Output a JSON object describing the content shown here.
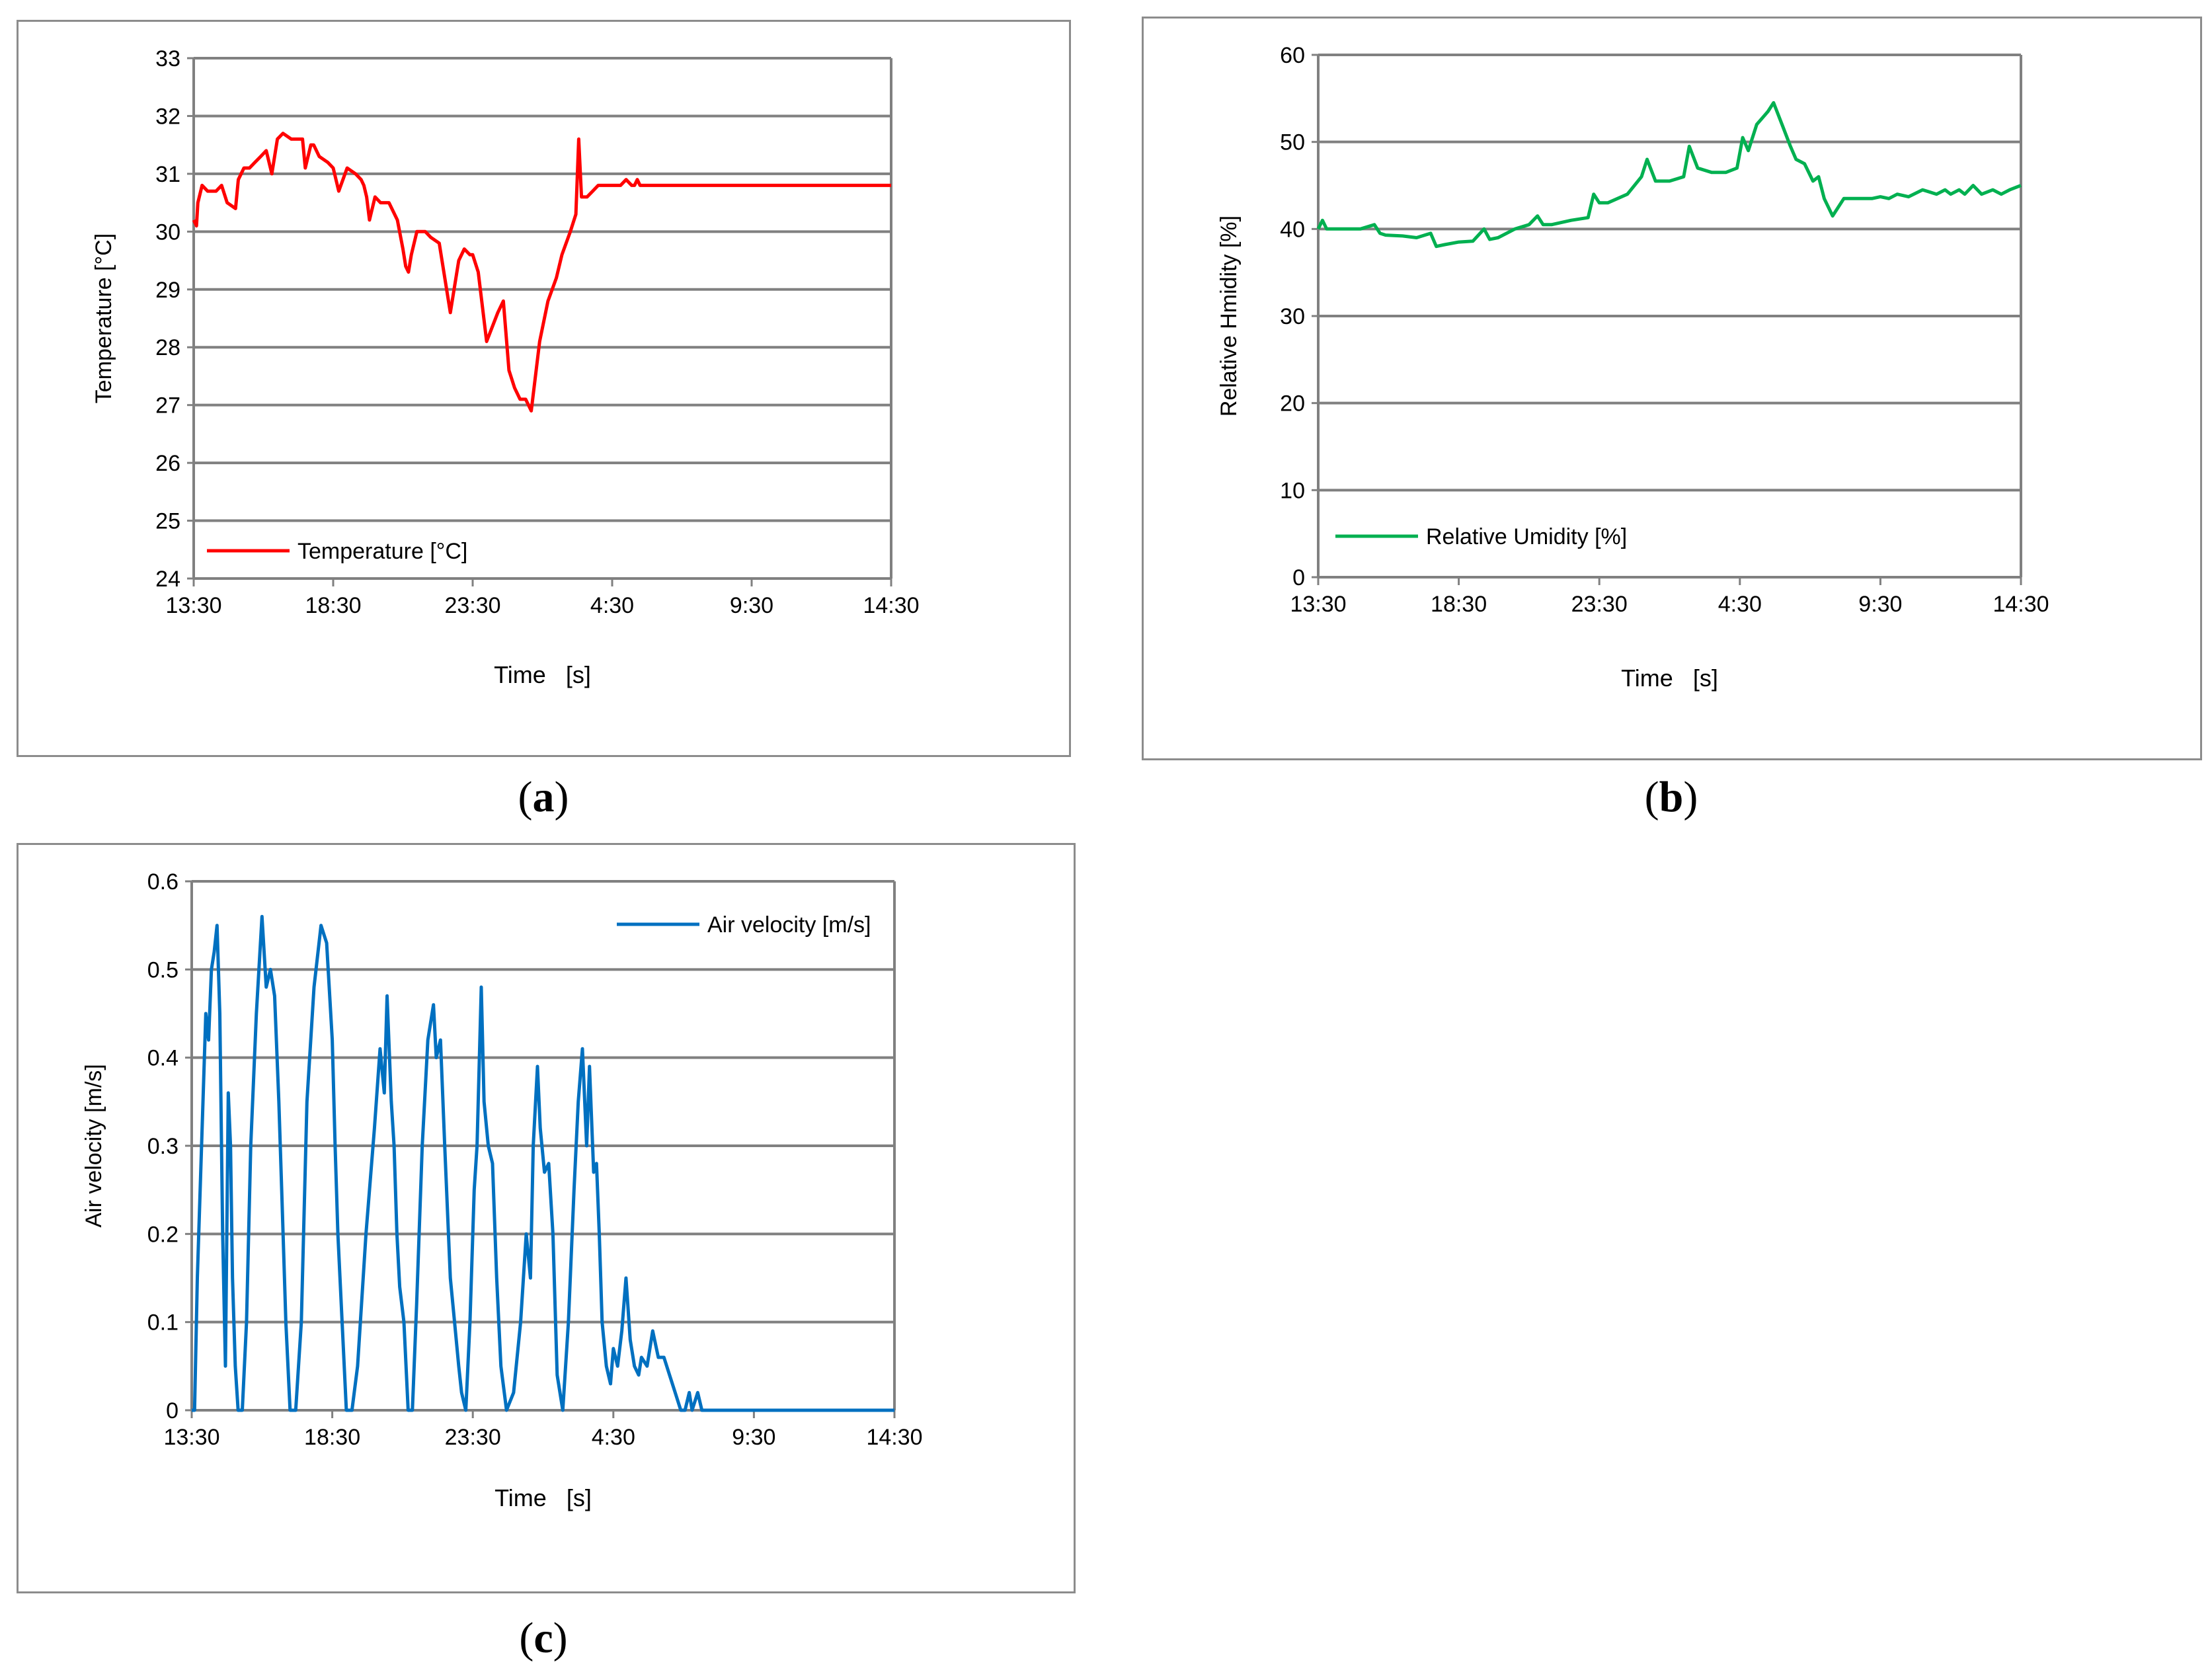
{
  "captions": {
    "a": "a",
    "b": "b",
    "c": "c"
  },
  "colors": {
    "temperature": "#ff0000",
    "humidity": "#00b050",
    "air_velocity": "#0070c0",
    "grid": "#808080",
    "border": "#8c8c8c"
  },
  "chart_data": [
    {
      "id": "a",
      "type": "line",
      "title": "",
      "xlabel": "Time   [s]",
      "ylabel": "Temperature [°C]",
      "ylim": [
        24,
        33
      ],
      "yticks": [
        24,
        25,
        26,
        27,
        28,
        29,
        30,
        31,
        32,
        33
      ],
      "xlim": [
        0,
        25
      ],
      "xtick_positions": [
        0,
        5,
        10,
        15,
        20,
        25
      ],
      "xtick_labels": [
        "13:30",
        "18:30",
        "23:30",
        "4:30",
        "9:30",
        "14:30"
      ],
      "grid": true,
      "legend": "bottom-left",
      "series": [
        {
          "name": "Temperature [°C]",
          "color": "#ff0000",
          "x": [
            0,
            0.1,
            0.15,
            0.3,
            0.5,
            0.8,
            1,
            1.2,
            1.5,
            1.6,
            1.8,
            2,
            2.2,
            2.4,
            2.6,
            2.8,
            3,
            3.2,
            3.5,
            3.8,
            3.9,
            4,
            4.2,
            4.3,
            4.4,
            4.5,
            4.8,
            5,
            5.2,
            5.5,
            5.8,
            6,
            6.1,
            6.2,
            6.3,
            6.5,
            6.7,
            7,
            7.3,
            7.5,
            7.6,
            7.7,
            7.8,
            8,
            8.3,
            8.5,
            8.8,
            9.2,
            9.5,
            9.7,
            9.9,
            10,
            10.2,
            10.5,
            10.9,
            11.1,
            11.3,
            11.5,
            11.7,
            11.9,
            12.1,
            12.4,
            12.7,
            13,
            13.2,
            13.5,
            13.7,
            13.8,
            13.9,
            14.1,
            14.3,
            14.5,
            14.7,
            15,
            15.3,
            15.5,
            15.7,
            15.8,
            15.9,
            16,
            16.1,
            16.2,
            16.3,
            16.4,
            16.6,
            16.8,
            16.9,
            17,
            17.1,
            17.2,
            17.3,
            17.5,
            17.7,
            18,
            18.2,
            18.6,
            19,
            19.3,
            19.5,
            19.7,
            19.9,
            20,
            20.2,
            20.4,
            20.7,
            21,
            21.5,
            22,
            22.5,
            23,
            23.5,
            24,
            24.5,
            25
          ],
          "values": [
            30.2,
            30.1,
            30.5,
            30.8,
            30.7,
            30.7,
            30.8,
            30.5,
            30.4,
            30.9,
            31.1,
            31.1,
            31.2,
            31.3,
            31.4,
            31.0,
            31.6,
            31.7,
            31.6,
            31.6,
            31.6,
            31.1,
            31.5,
            31.5,
            31.4,
            31.3,
            31.2,
            31.1,
            30.7,
            31.1,
            31.0,
            30.9,
            30.8,
            30.6,
            30.2,
            30.6,
            30.5,
            30.5,
            30.2,
            29.7,
            29.4,
            29.3,
            29.6,
            30.0,
            30.0,
            29.9,
            29.8,
            28.6,
            29.5,
            29.7,
            29.6,
            29.6,
            29.3,
            28.1,
            28.6,
            28.8,
            27.6,
            27.3,
            27.1,
            27.1,
            26.9,
            28.1,
            28.8,
            29.2,
            29.6,
            30.0,
            30.3,
            31.6,
            30.6,
            30.6,
            30.7,
            30.8,
            30.8,
            30.8,
            30.8,
            30.9,
            30.8,
            30.8,
            30.9,
            30.8,
            30.8,
            30.8,
            30.8,
            30.8,
            30.8,
            30.8,
            30.8,
            30.8,
            30.8,
            30.8,
            30.8,
            30.8,
            30.8,
            30.8,
            30.8,
            30.8,
            30.8,
            30.8,
            30.8,
            30.8,
            30.8,
            30.8,
            30.8,
            30.8,
            30.8,
            30.8,
            30.8,
            30.8,
            30.8,
            30.8,
            30.8,
            30.8,
            30.8,
            30.8
          ]
        }
      ]
    },
    {
      "id": "b",
      "type": "line",
      "title": "",
      "xlabel": "Time   [s]",
      "ylabel": "Relative Hmidity [%]",
      "ylim": [
        0,
        60
      ],
      "yticks": [
        0,
        10,
        20,
        30,
        40,
        50,
        60
      ],
      "xlim": [
        0,
        25
      ],
      "xtick_positions": [
        0,
        5,
        10,
        15,
        20,
        25
      ],
      "xtick_labels": [
        "13:30",
        "18:30",
        "23:30",
        "4:30",
        "9:30",
        "14:30"
      ],
      "grid": true,
      "legend": "bottom-left",
      "series": [
        {
          "name": "Relative Umidity [%]",
          "color": "#00b050",
          "x": [
            0,
            0.15,
            0.3,
            0.8,
            1.5,
            2,
            2.2,
            2.4,
            3,
            3.5,
            4,
            4.2,
            4.5,
            5,
            5.5,
            5.9,
            6.1,
            6.4,
            7,
            7.5,
            7.8,
            8,
            8.3,
            9,
            9.6,
            9.8,
            10,
            10.3,
            11,
            11.5,
            11.7,
            12,
            12.5,
            13,
            13.2,
            13.5,
            14,
            14.5,
            14.9,
            15.1,
            15.3,
            15.6,
            16,
            16.2,
            16.5,
            16.8,
            17,
            17.3,
            17.6,
            17.8,
            18,
            18.3,
            18.7,
            19,
            19.4,
            19.7,
            20,
            20.3,
            20.6,
            21,
            21.5,
            22,
            22.3,
            22.5,
            22.8,
            23,
            23.3,
            23.6,
            24,
            24.3,
            24.6,
            25
          ],
          "values": [
            40,
            41,
            40,
            40,
            40,
            40.5,
            39.5,
            39.3,
            39.2,
            39,
            39.5,
            38,
            38.2,
            38.5,
            38.6,
            40,
            38.8,
            39,
            40,
            40.5,
            41.5,
            40.5,
            40.5,
            41,
            41.3,
            44,
            43,
            43,
            44,
            46,
            48,
            45.5,
            45.5,
            46,
            49.5,
            47,
            46.5,
            46.5,
            47,
            50.5,
            49,
            52,
            53.5,
            54.5,
            52,
            49.5,
            48,
            47.5,
            45.5,
            46,
            43.5,
            41.5,
            43.5,
            43.5,
            43.5,
            43.5,
            43.7,
            43.5,
            44,
            43.7,
            44.5,
            44,
            44.5,
            44,
            44.5,
            44,
            45,
            44,
            44.5,
            44,
            44.5,
            45
          ]
        }
      ]
    },
    {
      "id": "c",
      "type": "line",
      "title": "",
      "xlabel": "Time   [s]",
      "ylabel": "Air velocity [m/s]",
      "ylim": [
        0,
        0.6
      ],
      "yticks": [
        0,
        0.1,
        0.2,
        0.3,
        0.4,
        0.5,
        0.6
      ],
      "xlim": [
        0,
        25
      ],
      "xtick_positions": [
        0,
        5,
        10,
        15,
        20,
        25
      ],
      "xtick_labels": [
        "13:30",
        "18:30",
        "23:30",
        "4:30",
        "9:30",
        "14:30"
      ],
      "grid": true,
      "legend": "top-right",
      "series": [
        {
          "name": "Air velocity [m/s]",
          "color": "#0070c0",
          "x": [
            0,
            0.1,
            0.2,
            0.35,
            0.5,
            0.6,
            0.7,
            0.8,
            0.9,
            1.0,
            1.1,
            1.2,
            1.3,
            1.38,
            1.45,
            1.55,
            1.65,
            1.8,
            1.95,
            2.1,
            2.3,
            2.5,
            2.65,
            2.8,
            2.95,
            3.1,
            3.2,
            3.35,
            3.5,
            3.7,
            3.9,
            4.1,
            4.35,
            4.6,
            4.8,
            5.0,
            5.1,
            5.2,
            5.35,
            5.5,
            5.7,
            5.9,
            6.2,
            6.5,
            6.7,
            6.85,
            6.95,
            7.1,
            7.2,
            7.3,
            7.4,
            7.55,
            7.7,
            7.85,
            8.0,
            8.2,
            8.4,
            8.6,
            8.7,
            8.85,
            9.0,
            9.2,
            9.35,
            9.5,
            9.6,
            9.75,
            9.9,
            10.05,
            10.15,
            10.3,
            10.4,
            10.55,
            10.7,
            10.85,
            11.0,
            11.2,
            11.45,
            11.7,
            11.9,
            12.05,
            12.15,
            12.3,
            12.4,
            12.55,
            12.7,
            12.85,
            13.0,
            13.2,
            13.4,
            13.6,
            13.75,
            13.9,
            14.05,
            14.15,
            14.3,
            14.4,
            14.5,
            14.6,
            14.75,
            14.9,
            15.0,
            15.15,
            15.3,
            15.45,
            15.6,
            15.75,
            15.9,
            16.0,
            16.2,
            16.4,
            16.6,
            16.8,
            17.0,
            17.2,
            17.4,
            17.55,
            17.7,
            17.8,
            17.9,
            18.0,
            18.15,
            18.3,
            19.0,
            20.0,
            21.0,
            22.0,
            23.0,
            24.0,
            25.0
          ],
          "values": [
            0,
            0,
            0.15,
            0.3,
            0.45,
            0.42,
            0.5,
            0.52,
            0.55,
            0.45,
            0.2,
            0.05,
            0.36,
            0.3,
            0.15,
            0.05,
            0,
            0,
            0.1,
            0.3,
            0.45,
            0.56,
            0.48,
            0.5,
            0.47,
            0.35,
            0.25,
            0.1,
            0,
            0,
            0.1,
            0.35,
            0.48,
            0.55,
            0.53,
            0.42,
            0.3,
            0.2,
            0.1,
            0,
            0,
            0.05,
            0.2,
            0.32,
            0.41,
            0.36,
            0.47,
            0.35,
            0.3,
            0.2,
            0.14,
            0.1,
            0,
            0,
            0.12,
            0.3,
            0.42,
            0.46,
            0.4,
            0.42,
            0.3,
            0.15,
            0.1,
            0.05,
            0.02,
            0,
            0.1,
            0.25,
            0.3,
            0.48,
            0.35,
            0.3,
            0.28,
            0.15,
            0.05,
            0,
            0.02,
            0.1,
            0.2,
            0.15,
            0.3,
            0.39,
            0.32,
            0.27,
            0.28,
            0.2,
            0.04,
            0,
            0.1,
            0.25,
            0.35,
            0.41,
            0.3,
            0.39,
            0.27,
            0.28,
            0.2,
            0.1,
            0.05,
            0.03,
            0.07,
            0.05,
            0.09,
            0.15,
            0.08,
            0.05,
            0.04,
            0.06,
            0.05,
            0.09,
            0.06,
            0.06,
            0.04,
            0.02,
            0,
            0,
            0.02,
            0,
            0.01,
            0.02,
            0,
            0,
            0,
            0,
            0,
            0,
            0,
            0,
            0
          ]
        }
      ]
    }
  ]
}
